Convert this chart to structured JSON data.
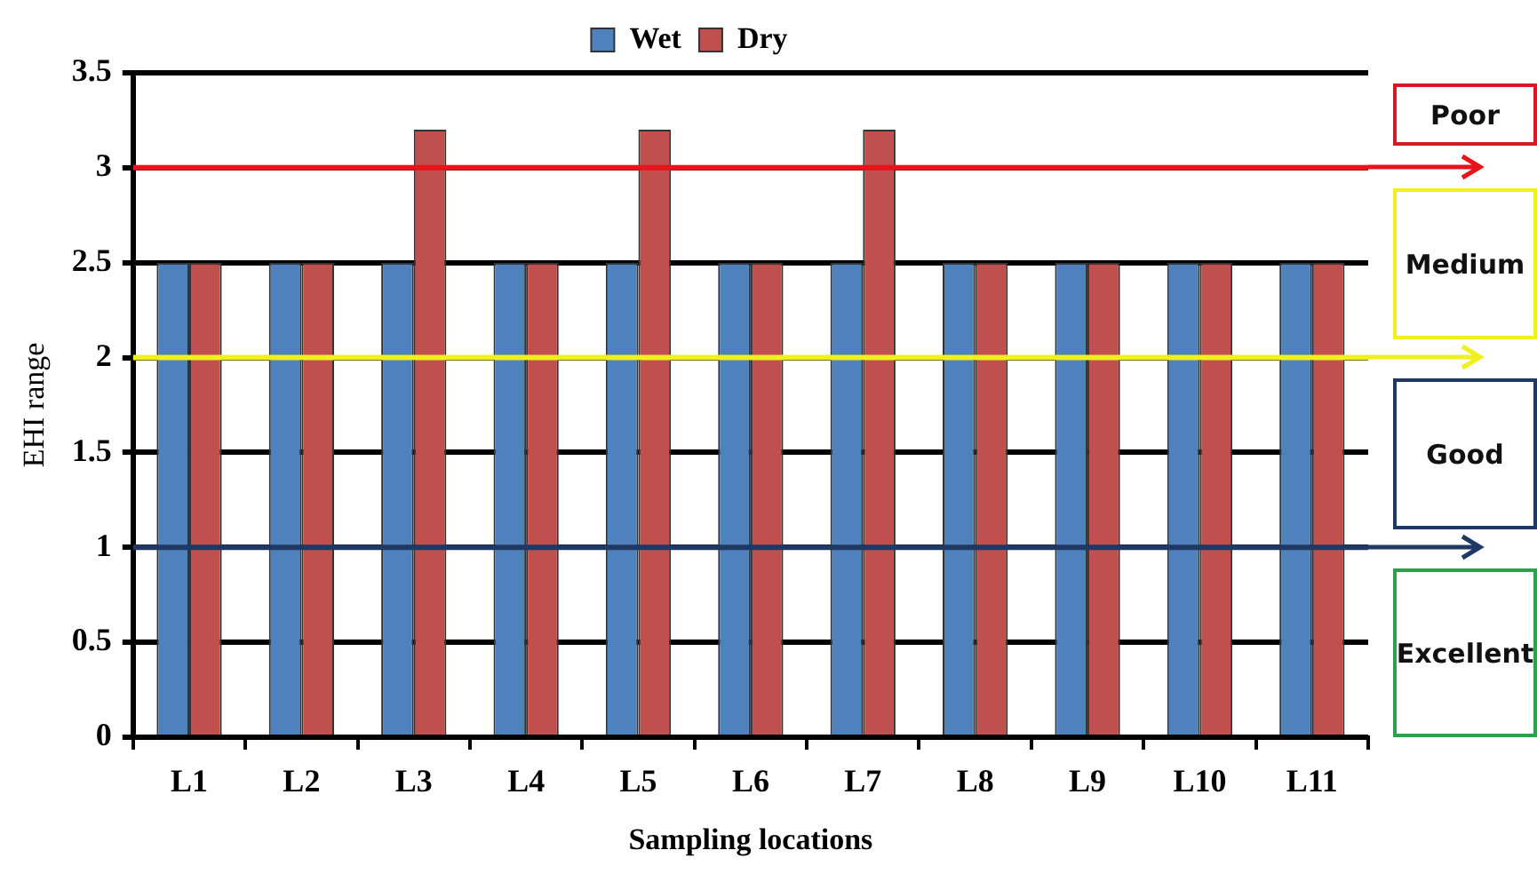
{
  "chart_data": {
    "type": "bar",
    "xlabel": "Sampling locations",
    "ylabel": "EHI range",
    "categories": [
      "L1",
      "L2",
      "L3",
      "L4",
      "L5",
      "L6",
      "L7",
      "L8",
      "L9",
      "L10",
      "L11"
    ],
    "series": [
      {
        "name": "Wet",
        "color": "#4f81bd",
        "values": [
          2.5,
          2.5,
          2.5,
          2.5,
          2.5,
          2.5,
          2.5,
          2.5,
          2.5,
          2.5,
          2.5
        ]
      },
      {
        "name": "Dry",
        "color": "#c0504d",
        "values": [
          2.5,
          2.5,
          3.2,
          2.5,
          3.2,
          2.5,
          3.2,
          2.5,
          2.5,
          2.5,
          2.5
        ]
      }
    ],
    "ylim": [
      0,
      3.5
    ],
    "yticks": [
      0,
      0.5,
      1,
      1.5,
      2,
      2.5,
      3,
      3.5
    ],
    "grid": "y",
    "legend": "top",
    "ref_lines": [
      {
        "axis": "y",
        "value": 3,
        "color": "#e8141c"
      },
      {
        "axis": "y",
        "value": 2,
        "color": "#f0f020"
      },
      {
        "axis": "y",
        "value": 1,
        "color": "#1f3864"
      }
    ],
    "annotations": [
      "Poor",
      "Medium",
      "Good",
      "Excellent"
    ]
  }
}
